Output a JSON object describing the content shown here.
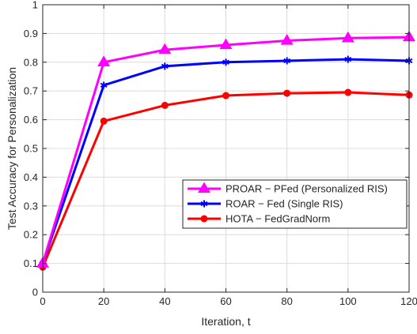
{
  "chart_data": {
    "type": "line",
    "xlabel": "Iteration, t",
    "ylabel": "Test Accuracy for Personalization",
    "xlim": [
      0,
      120
    ],
    "ylim": [
      0,
      1
    ],
    "xticks": [
      0,
      20,
      40,
      60,
      80,
      100,
      120
    ],
    "xtick_labels": [
      "0",
      "20",
      "40",
      "60",
      "80",
      "100",
      "120"
    ],
    "yticks": [
      0,
      0.1,
      0.2,
      0.3,
      0.4,
      0.5,
      0.6,
      0.7,
      0.8,
      0.9,
      1
    ],
    "ytick_labels": [
      "0",
      "0.1",
      "0.2",
      "0.3",
      "0.4",
      "0.5",
      "0.6",
      "0.7",
      "0.8",
      "0.9",
      "1"
    ],
    "grid": true,
    "legend_position": "center-right",
    "x": [
      0,
      20,
      40,
      60,
      80,
      100,
      120
    ],
    "series": [
      {
        "name": "PROAR − PFed  (Personalized RIS)",
        "color": "#ff00ff",
        "marker": "triangle",
        "values": [
          0.1,
          0.8,
          0.843,
          0.86,
          0.875,
          0.884,
          0.887
        ]
      },
      {
        "name": "ROAR − Fed (Single RIS)",
        "color": "#0000ff",
        "marker": "asterisk",
        "values": [
          0.1,
          0.72,
          0.786,
          0.8,
          0.805,
          0.81,
          0.805
        ]
      },
      {
        "name": "HOTA − FedGradNorm",
        "color": "#ff0000",
        "marker": "circle",
        "values": [
          0.087,
          0.595,
          0.65,
          0.684,
          0.692,
          0.695,
          0.686
        ]
      }
    ]
  }
}
